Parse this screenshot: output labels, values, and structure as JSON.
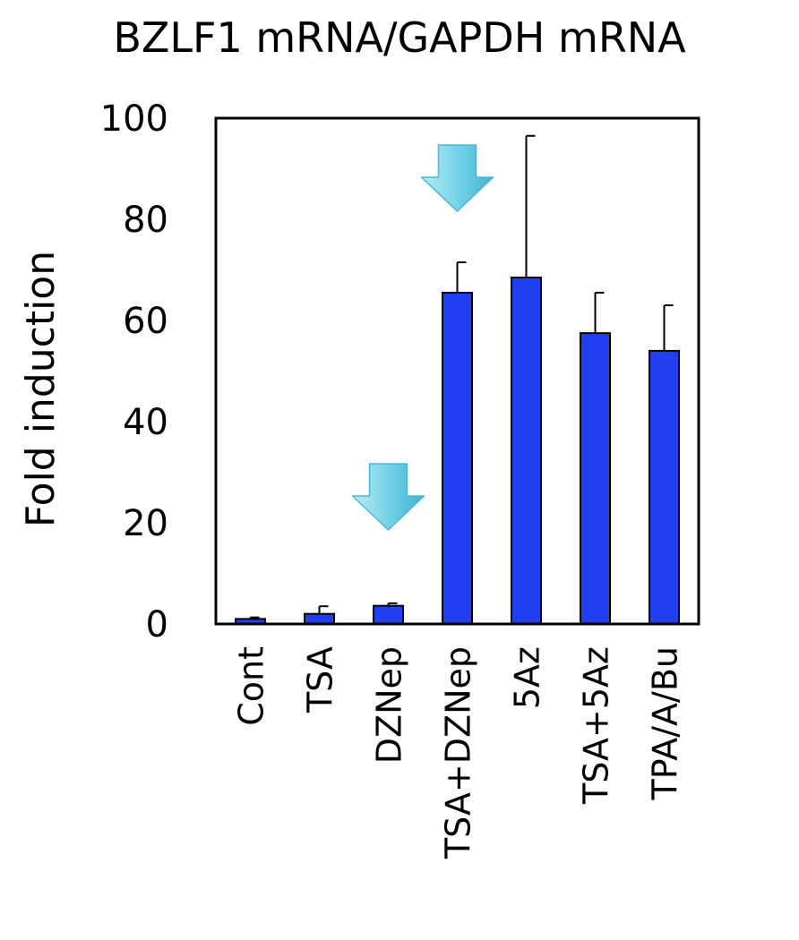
{
  "chart_data": {
    "type": "bar",
    "title": "BZLF1 mRNA/GAPDH mRNA",
    "xlabel": "",
    "ylabel": "Fold induction",
    "ylim": [
      0,
      100
    ],
    "yticks": [
      "0",
      "20",
      "40",
      "60",
      "80",
      "100"
    ],
    "grid": false,
    "categories": [
      "Cont",
      "TSA",
      "DZNep",
      "TSA+DZNep",
      "5Az",
      "TSA+5Az",
      "TPA/A/Bu"
    ],
    "series": [
      {
        "values": [
          1,
          2,
          3.6,
          65.5,
          68.5,
          57.5,
          54
        ],
        "errors": [
          0.3,
          1.5,
          0.5,
          6,
          28,
          8,
          9
        ]
      }
    ],
    "bar_color": "#1f3ff0",
    "annotations": [
      {
        "type": "arrow-down",
        "category": "DZNep",
        "color": "#7ed6ea"
      },
      {
        "type": "arrow-down",
        "category": "TSA+DZNep",
        "color": "#7ed6ea"
      }
    ]
  }
}
